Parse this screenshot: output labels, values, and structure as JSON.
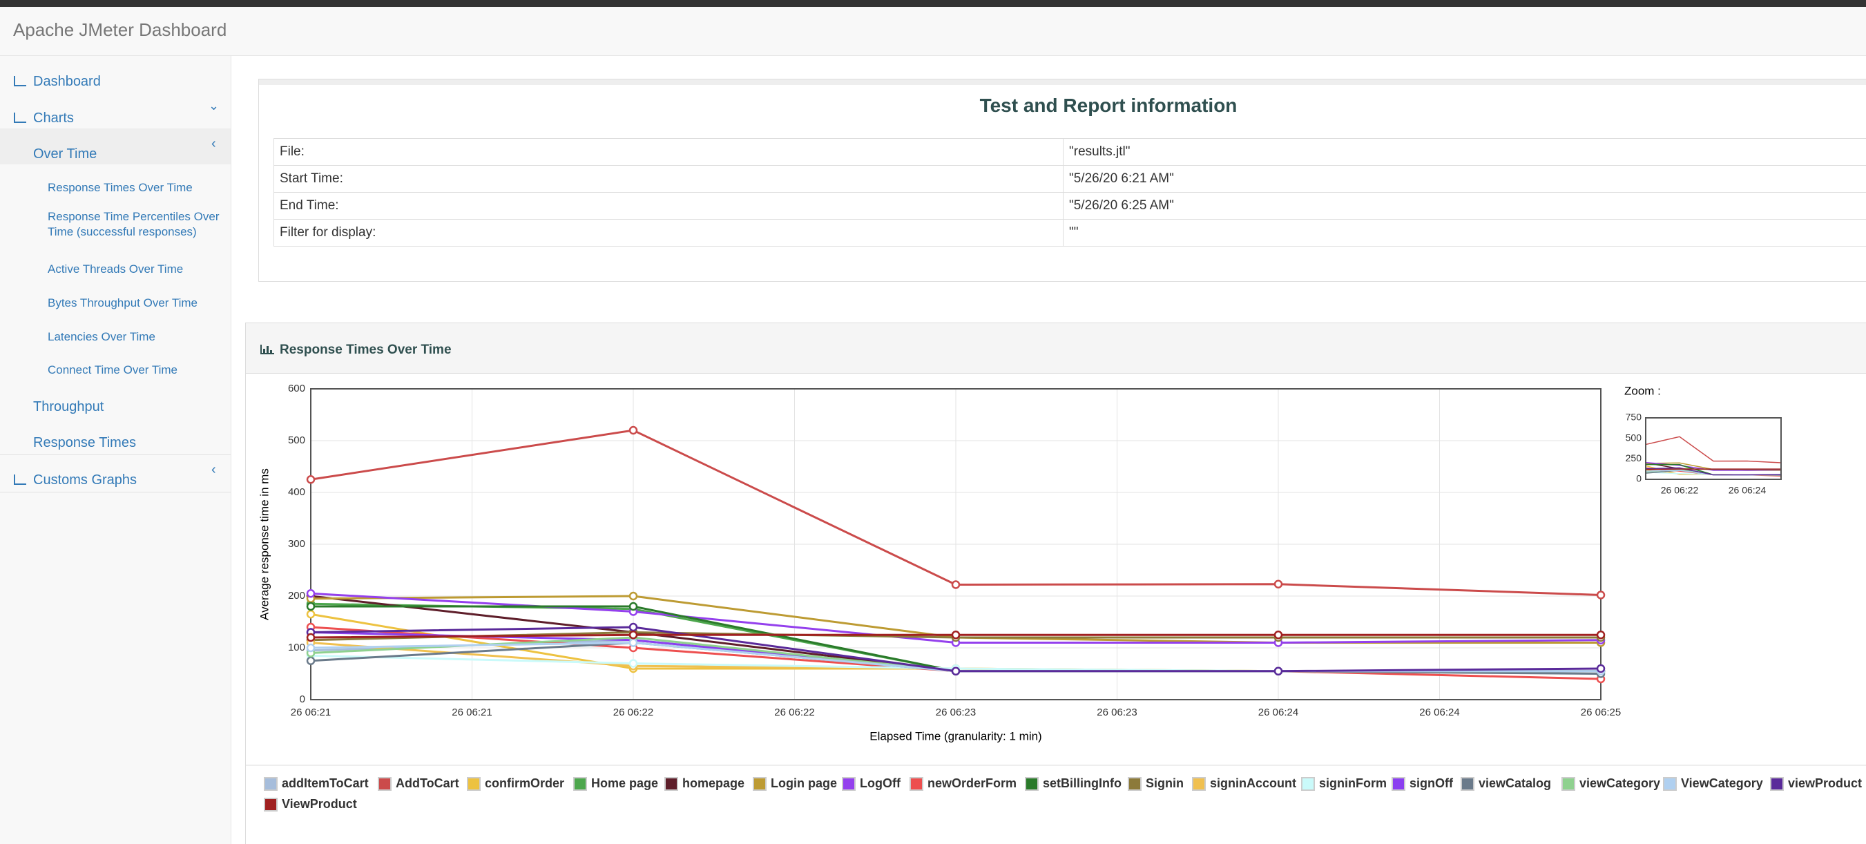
{
  "header": {
    "title": "Apache JMeter Dashboard"
  },
  "sidebar": {
    "items": [
      "Dashboard",
      "Charts",
      "Over Time",
      "Response Times Over Time",
      "Response Time Percentiles Over Time (successful responses)",
      "Active Threads Over Time",
      "Bytes Throughput Over Time",
      "Latencies Over Time",
      "Connect Time Over Time",
      "Throughput",
      "Response Times",
      "Customs Graphs"
    ]
  },
  "info": {
    "title": "Test and Report information",
    "rows": [
      [
        "File:",
        "\"results.jtl\""
      ],
      [
        "Start Time:",
        "\"5/26/20 6:21 AM\""
      ],
      [
        "End Time:",
        "\"5/26/20 6:25 AM\""
      ],
      [
        "Filter for display:",
        "\"\""
      ]
    ]
  },
  "chart_data": {
    "type": "line",
    "title": "Response Times Over Time",
    "ylabel": "Average response time in ms",
    "xlabel": "Elapsed Time (granularity: 1 min)",
    "xlim": [
      0,
      4
    ],
    "xticks": [
      {
        "value": 0,
        "label": "26 06:21"
      },
      {
        "value": 0.5,
        "label": "26 06:21"
      },
      {
        "value": 1,
        "label": "26 06:22"
      },
      {
        "value": 1.5,
        "label": "26 06:22"
      },
      {
        "value": 2,
        "label": "26 06:23"
      },
      {
        "value": 2.5,
        "label": "26 06:23"
      },
      {
        "value": 3,
        "label": "26 06:24"
      },
      {
        "value": 3.5,
        "label": "26 06:24"
      },
      {
        "value": 4,
        "label": "26 06:25"
      }
    ],
    "ylim": [
      0,
      600
    ],
    "yticks": [
      0,
      100,
      200,
      300,
      400,
      500,
      600
    ],
    "grid": true,
    "series": [
      {
        "name": "addItemToCart",
        "color": "#a6bddb",
        "values": [
          95,
          115,
          55,
          55,
          55
        ]
      },
      {
        "name": "AddToCart",
        "color": "#cb4b4b",
        "values": [
          425,
          520,
          222,
          223,
          202
        ]
      },
      {
        "name": "confirmOrder",
        "color": "#edc240",
        "values": [
          165,
          60,
          60,
          55,
          55
        ]
      },
      {
        "name": "Home page",
        "color": "#4da74d",
        "values": [
          185,
          175,
          55,
          55,
          55
        ]
      },
      {
        "name": "homepage",
        "color": "#5e1e2a",
        "values": [
          200,
          130,
          55,
          55,
          55
        ]
      },
      {
        "name": "Login page",
        "color": "#bd9b33",
        "values": [
          195,
          200,
          120,
          110,
          110
        ]
      },
      {
        "name": "LogOff",
        "color": "#9440ed",
        "values": [
          205,
          170,
          110,
          110,
          115
        ]
      },
      {
        "name": "newOrderForm",
        "color": "#ed4f4f",
        "values": [
          140,
          100,
          55,
          55,
          40
        ]
      },
      {
        "name": "setBillingInfo",
        "color": "#2a7a2a",
        "values": [
          180,
          180,
          55,
          55,
          55
        ]
      },
      {
        "name": "Signin",
        "color": "#8c7a3a",
        "values": [
          115,
          130,
          120,
          120,
          120
        ]
      },
      {
        "name": "signinAccount",
        "color": "#f0c050",
        "values": [
          110,
          65,
          60,
          55,
          55
        ]
      },
      {
        "name": "signinForm",
        "color": "#cafafa",
        "values": [
          85,
          70,
          60,
          55,
          55
        ]
      },
      {
        "name": "signOff",
        "color": "#8b3ff0",
        "values": [
          130,
          115,
          55,
          55,
          55
        ]
      },
      {
        "name": "viewCatalog",
        "color": "#6a7a8a",
        "values": [
          75,
          110,
          55,
          55,
          50
        ]
      },
      {
        "name": "viewCategory",
        "color": "#8fd18f",
        "values": [
          90,
          120,
          55,
          55,
          55
        ]
      },
      {
        "name": "ViewCategory",
        "color": "#b0d0f0",
        "values": [
          100,
          110,
          55,
          55,
          55
        ]
      },
      {
        "name": "viewProduct",
        "color": "#5a2a9a",
        "values": [
          130,
          140,
          55,
          55,
          60
        ]
      },
      {
        "name": "ViewProduct",
        "color": "#a02020",
        "values": [
          120,
          125,
          125,
          125,
          125
        ]
      }
    ]
  },
  "zoom": {
    "label": "Zoom :",
    "ylim": [
      0,
      750
    ],
    "yticks": [
      0,
      250,
      500,
      750
    ],
    "xlim": [
      0,
      4
    ],
    "xticks": [
      {
        "value": 1,
        "label": "26 06:22"
      },
      {
        "value": 3,
        "label": "26 06:24"
      }
    ]
  }
}
